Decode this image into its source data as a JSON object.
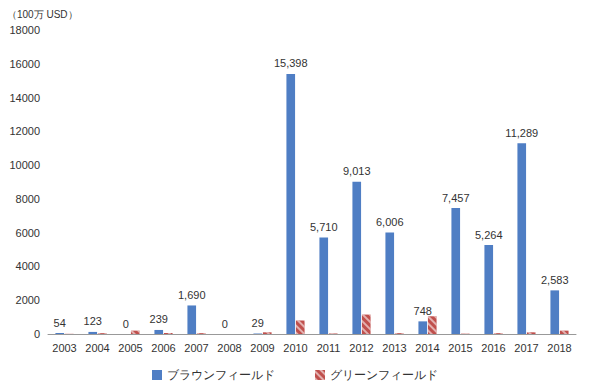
{
  "chart_data": {
    "type": "bar",
    "y_label": "（100万 USD）",
    "categories": [
      "2003",
      "2004",
      "2005",
      "2006",
      "2007",
      "2008",
      "2009",
      "2010",
      "2011",
      "2012",
      "2013",
      "2014",
      "2015",
      "2016",
      "2017",
      "2018"
    ],
    "series": [
      {
        "name": "ブラウンフィールド",
        "color": "#4f7ec4",
        "data_labels": true,
        "values": [
          54,
          123,
          0,
          239,
          1690,
          0,
          29,
          15398,
          5710,
          9013,
          6006,
          748,
          7457,
          5264,
          11289,
          2583
        ],
        "value_labels": [
          "54",
          "123",
          "0",
          "239",
          "1,690",
          "0",
          "29",
          "15,398",
          "5,710",
          "9,013",
          "6,006",
          "748",
          "7,457",
          "5,264",
          "11,289",
          "2,583"
        ]
      },
      {
        "name": "グリーンフィールド",
        "color": "#c0504d",
        "values": [
          10,
          50,
          200,
          60,
          50,
          0,
          100,
          800,
          30,
          1150,
          50,
          1050,
          20,
          50,
          100,
          200
        ]
      }
    ],
    "ylim": [
      0,
      18000
    ],
    "yticks": [
      0,
      2000,
      4000,
      6000,
      8000,
      10000,
      12000,
      14000,
      16000,
      18000
    ],
    "grid": false,
    "legend": "bottom"
  }
}
